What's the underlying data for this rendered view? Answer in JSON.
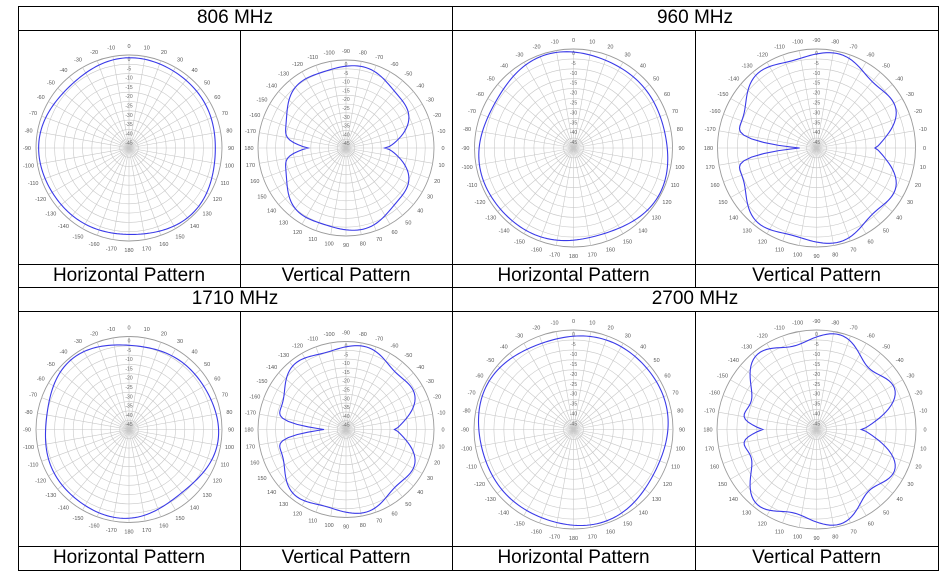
{
  "panels": [
    {
      "frequency": "806 MHz",
      "horizontal": {
        "caption": "Horizontal Pattern",
        "angle_labels": [
          "0",
          "10",
          "20",
          "30",
          "40",
          "50",
          "60",
          "70",
          "80",
          "90",
          "100",
          "110",
          "120",
          "130",
          "140",
          "150",
          "160",
          "170",
          "180",
          "-170",
          "-160",
          "-150",
          "-140",
          "-130",
          "-120",
          "-110",
          "-100",
          "-90",
          "-80",
          "-70",
          "-60",
          "-50",
          "-40",
          "-30",
          "-20",
          "-10"
        ],
        "ring_labels": [
          "0",
          "-5",
          "-10",
          "-15",
          "-20",
          "-25",
          "-30",
          "-35",
          "-40",
          "-45"
        ],
        "trace": {
          "kind": "omni",
          "level": 0.95,
          "ripple": 0.02,
          "phase": 40
        }
      },
      "vertical": {
        "caption": "Vertical Pattern",
        "angle_labels": [
          "-90",
          "-80",
          "-70",
          "-60",
          "-50",
          "-40",
          "-30",
          "-20",
          "-10",
          "0",
          "10",
          "20",
          "30",
          "40",
          "50",
          "60",
          "70",
          "80",
          "90",
          "100",
          "110",
          "120",
          "130",
          "140",
          "150",
          "160",
          "170",
          "180",
          "-170",
          "-160",
          "-150",
          "-140",
          "-130",
          "-120",
          "-110",
          "-100"
        ],
        "ring_labels": [
          "0",
          "-5",
          "-10",
          "-15",
          "-20",
          "-25",
          "-30",
          "-35",
          "-40",
          "-45"
        ],
        "trace": {
          "kind": "dipole",
          "main": 0.93,
          "notch": 0.4,
          "side": 0.55,
          "ripple": 0.03
        }
      }
    },
    {
      "frequency": "960 MHz",
      "horizontal": {
        "caption": "Horizontal Pattern",
        "angle_labels": [
          "0",
          "10",
          "20",
          "30",
          "40",
          "50",
          "60",
          "70",
          "80",
          "90",
          "100",
          "110",
          "120",
          "130",
          "140",
          "150",
          "160",
          "170",
          "180",
          "-170",
          "-160",
          "-150",
          "-140",
          "-130",
          "-120",
          "-110",
          "-100",
          "-90",
          "-80",
          "-70",
          "-60",
          "-50",
          "-40",
          "-30",
          "-20",
          "-10"
        ],
        "ring_labels": [
          "0",
          "-5",
          "-10",
          "-15",
          "-20",
          "-25",
          "-30",
          "-35",
          "-40",
          "-45"
        ],
        "trace": {
          "kind": "omni",
          "level": 0.95,
          "ripple": 0.025,
          "phase": 110
        }
      },
      "vertical": {
        "caption": "Vertical Pattern",
        "angle_labels": [
          "-90",
          "-80",
          "-70",
          "-60",
          "-50",
          "-40",
          "-30",
          "-20",
          "-10",
          "0",
          "10",
          "20",
          "30",
          "40",
          "50",
          "60",
          "70",
          "80",
          "90",
          "100",
          "110",
          "120",
          "130",
          "140",
          "150",
          "160",
          "170",
          "180",
          "-170",
          "-160",
          "-150",
          "-140",
          "-130",
          "-120",
          "-110",
          "-100"
        ],
        "ring_labels": [
          "0",
          "-5",
          "-10",
          "-15",
          "-20",
          "-25",
          "-30",
          "-35",
          "-40",
          "-45"
        ],
        "trace": {
          "kind": "dipole",
          "main": 0.95,
          "notch": 0.12,
          "side": 0.72,
          "ripple": 0.05
        }
      }
    },
    {
      "frequency": "1710 MHz",
      "horizontal": {
        "caption": "Horizontal Pattern",
        "angle_labels": [
          "0",
          "10",
          "20",
          "30",
          "40",
          "50",
          "60",
          "70",
          "80",
          "90",
          "100",
          "110",
          "120",
          "130",
          "140",
          "150",
          "160",
          "170",
          "180",
          "-170",
          "-160",
          "-150",
          "-140",
          "-130",
          "-120",
          "-110",
          "-100",
          "-90",
          "-80",
          "-70",
          "-60",
          "-50",
          "-40",
          "-30",
          "-20",
          "-10"
        ],
        "ring_labels": [
          "0",
          "-5",
          "-10",
          "-15",
          "-20",
          "-25",
          "-30",
          "-35",
          "-40",
          "-45"
        ],
        "trace": {
          "kind": "omni",
          "level": 0.93,
          "ripple": 0.03,
          "phase": 200
        }
      },
      "vertical": {
        "caption": "Vertical Pattern",
        "angle_labels": [
          "-90",
          "-80",
          "-70",
          "-60",
          "-50",
          "-40",
          "-30",
          "-20",
          "-10",
          "0",
          "10",
          "20",
          "30",
          "40",
          "50",
          "60",
          "70",
          "80",
          "90",
          "100",
          "110",
          "120",
          "130",
          "140",
          "150",
          "160",
          "170",
          "180",
          "-170",
          "-160",
          "-150",
          "-140",
          "-130",
          "-120",
          "-110",
          "-100"
        ],
        "ring_labels": [
          "0",
          "-5",
          "-10",
          "-15",
          "-20",
          "-25",
          "-30",
          "-35",
          "-40",
          "-45"
        ],
        "trace": {
          "kind": "dipole",
          "main": 0.94,
          "notch": 0.2,
          "side": 0.68,
          "ripple": 0.05
        }
      }
    },
    {
      "frequency": "2700 MHz",
      "horizontal": {
        "caption": "Horizontal Pattern",
        "angle_labels": [
          "0",
          "10",
          "20",
          "30",
          "40",
          "50",
          "60",
          "70",
          "80",
          "90",
          "100",
          "110",
          "120",
          "130",
          "140",
          "150",
          "160",
          "170",
          "180",
          "-170",
          "-160",
          "-150",
          "-140",
          "-130",
          "-120",
          "-110",
          "-100",
          "-90",
          "-80",
          "-70",
          "-60",
          "-50",
          "-40",
          "-30",
          "-20",
          "-10"
        ],
        "ring_labels": [
          "0",
          "-5",
          "-10",
          "-15",
          "-20",
          "-25",
          "-30",
          "-35",
          "-40",
          "-45"
        ],
        "trace": {
          "kind": "omni",
          "level": 0.95,
          "ripple": 0.02,
          "phase": 300
        }
      },
      "vertical": {
        "caption": "Vertical Pattern",
        "angle_labels": [
          "-90",
          "-80",
          "-70",
          "-60",
          "-50",
          "-40",
          "-30",
          "-20",
          "-10",
          "0",
          "10",
          "20",
          "30",
          "40",
          "50",
          "60",
          "70",
          "80",
          "90",
          "100",
          "110",
          "120",
          "130",
          "140",
          "150",
          "160",
          "170",
          "180",
          "-170",
          "-160",
          "-150",
          "-140",
          "-130",
          "-120",
          "-110",
          "-100"
        ],
        "ring_labels": [
          "0",
          "-5",
          "-10",
          "-15",
          "-20",
          "-25",
          "-30",
          "-35",
          "-40",
          "-45"
        ],
        "trace": {
          "kind": "dipole",
          "main": 0.93,
          "notch": 0.45,
          "side": 0.62,
          "ripple": 0.09
        }
      }
    }
  ],
  "colors": {
    "trace": "#3a3ae8",
    "grid": "#c8c8c8",
    "border": "#000000"
  }
}
